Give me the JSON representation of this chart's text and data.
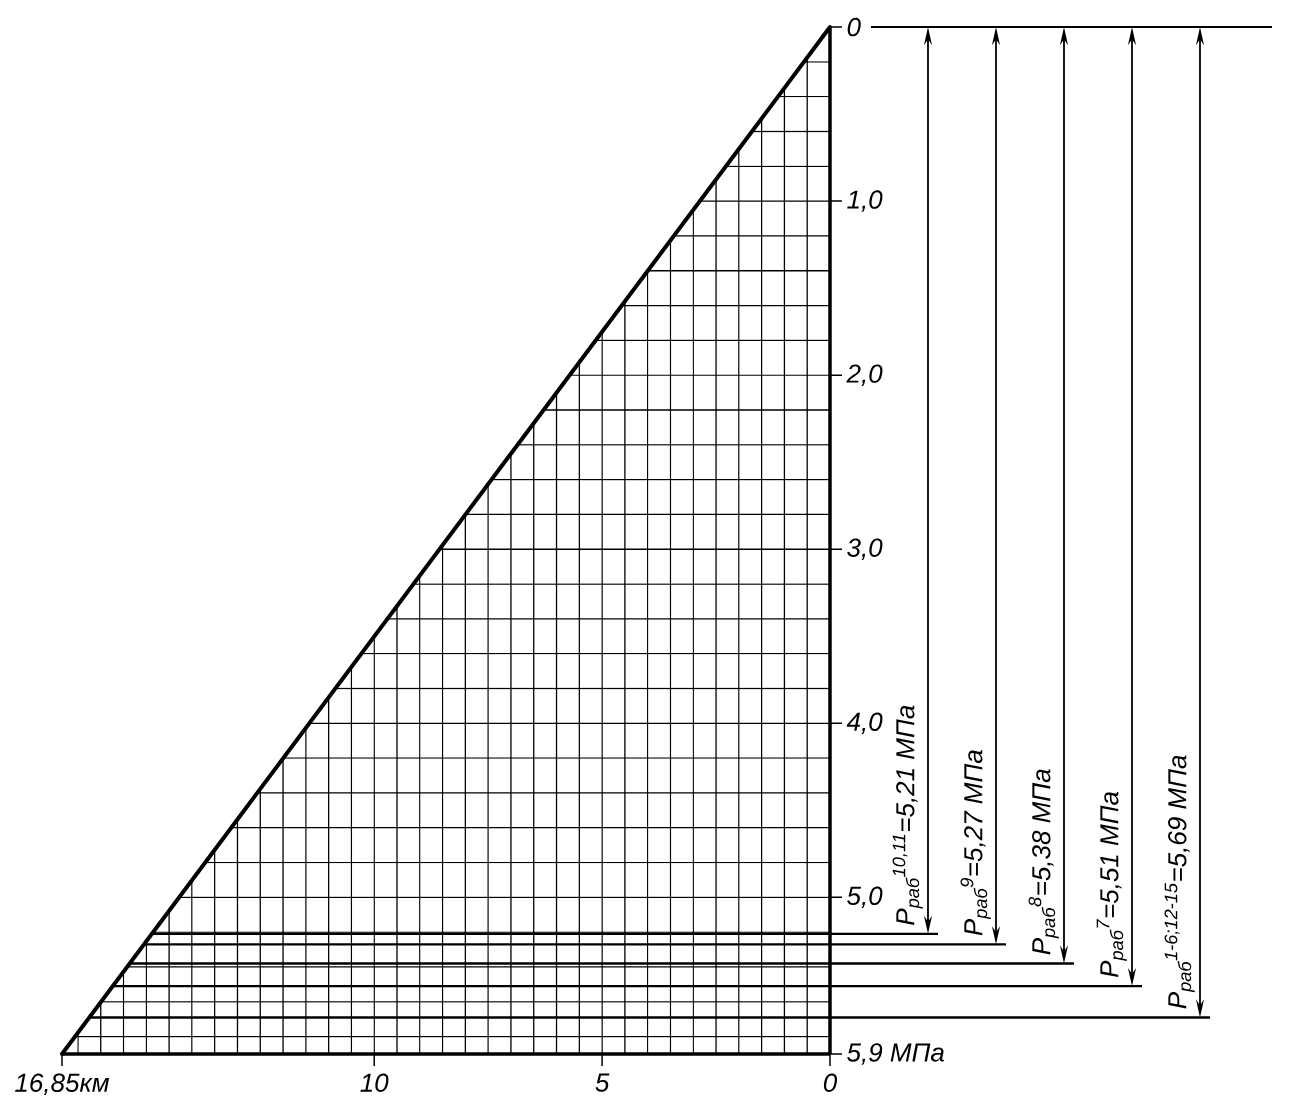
{
  "chart_data": {
    "type": "line",
    "x": [
      0,
      16.85
    ],
    "series": [
      {
        "color": "#000000",
        "values": [
          0,
          5.9
        ]
      }
    ],
    "xlim": [
      16.85,
      0
    ],
    "ylim": [
      5.9,
      0
    ],
    "xticks": [
      {
        "value": 16.85,
        "label": "16,85км"
      },
      10,
      5,
      0
    ],
    "yticks": [
      0,
      {
        "value": 1.0,
        "label": "1,0"
      },
      {
        "value": 2.0,
        "label": "2,0"
      },
      {
        "value": 3.0,
        "label": "3,0"
      },
      {
        "value": 4.0,
        "label": "4,0"
      },
      {
        "value": 5.0,
        "label": "5,0"
      },
      {
        "value": 5.9,
        "label": "5,9 МПа"
      }
    ],
    "grid": true,
    "ref_lines": [
      {
        "axis": "y",
        "value": 5.21,
        "label": "P$_{раб}$$^{10,11}$=5,21 МПа"
      },
      {
        "axis": "y",
        "value": 5.27,
        "label": "P$_{раб}$$^{9}$=5,27 МПа"
      },
      {
        "axis": "y",
        "value": 5.38,
        "label": "P$_{раб}$$^{8}$=5,38 МПа"
      },
      {
        "axis": "y",
        "value": 5.51,
        "label": "P$_{раб}$$^{7}$=5,51 МПа"
      },
      {
        "axis": "y",
        "value": 5.69,
        "label": "P$_{раб}$$^{1-6;12-15}$=5,69 МПа"
      }
    ]
  }
}
